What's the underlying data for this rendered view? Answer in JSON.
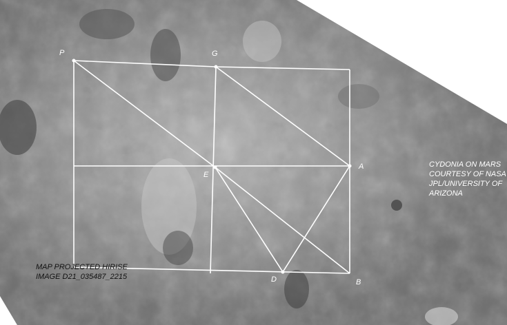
{
  "points": {
    "P": "P",
    "G": "G",
    "A": "A",
    "E": "E",
    "D": "D",
    "B": "B"
  },
  "caption_right": {
    "line1": "CYDONIA ON MARS",
    "line2": "COURTESY OF NASA",
    "line3": "JPL/UNIVERSITY OF",
    "line4": "ARIZONA"
  },
  "caption_left": {
    "line1": "MAP PROJECTED HIRISE",
    "line2": "IMAGE D21_035487_2215"
  },
  "colors": {
    "overlay_lines": "#ffffff",
    "terrain_base": "#8a8a8a",
    "background": "#ffffff"
  }
}
